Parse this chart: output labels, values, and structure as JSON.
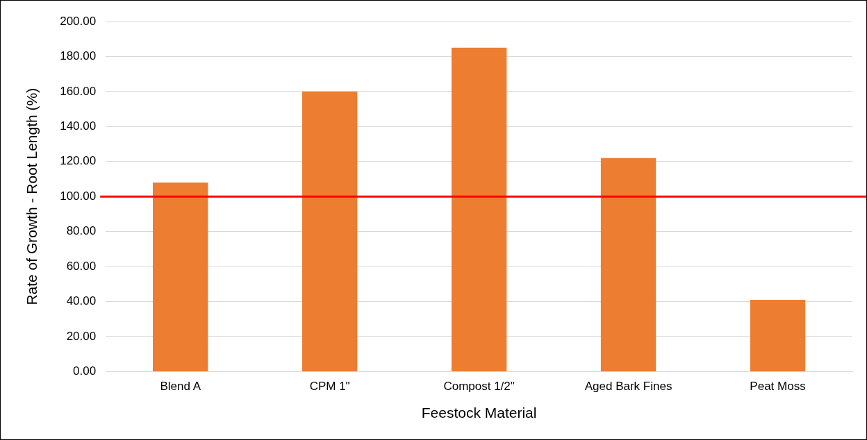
{
  "chart_data": {
    "type": "bar",
    "xlabel": "Feestock Material",
    "ylabel": "Rate of Growth - Root Length (%)",
    "categories": [
      "Blend A",
      "CPM 1\"",
      "Compost 1/2\"",
      "Aged Bark Fines",
      "Peat Moss"
    ],
    "values": [
      108,
      160,
      185,
      122,
      41
    ],
    "color": "#ed7d31",
    "ylim": [
      0,
      200
    ],
    "yticks": [
      {
        "value": 0,
        "label": "0.00"
      },
      {
        "value": 20,
        "label": "20.00"
      },
      {
        "value": 40,
        "label": "40.00"
      },
      {
        "value": 60,
        "label": "60.00"
      },
      {
        "value": 80,
        "label": "80.00"
      },
      {
        "value": 100,
        "label": "100.00"
      },
      {
        "value": 120,
        "label": "120.00"
      },
      {
        "value": 140,
        "label": "140.00"
      },
      {
        "value": 160,
        "label": "160.00"
      },
      {
        "value": 180,
        "label": "180.00"
      },
      {
        "value": 200,
        "label": "200.00"
      }
    ],
    "ref_lines": [
      {
        "axis": "y",
        "value": 100,
        "color": "#ff0000"
      }
    ],
    "grid": "y",
    "legend": false
  }
}
